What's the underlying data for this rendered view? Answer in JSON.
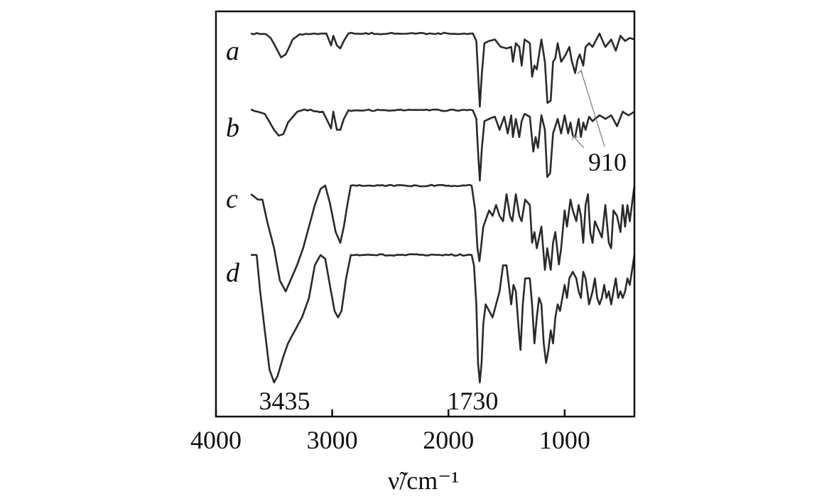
{
  "chart_data": {
    "type": "line",
    "xlabel": "ν̃/cm⁻¹",
    "xlim": [
      4000,
      400
    ],
    "x_reversed": true,
    "grid": false,
    "x_ticks": [
      4000,
      3000,
      2000,
      1000
    ],
    "x_tick_labels": [
      "4000",
      "3000",
      "2000",
      "1000"
    ],
    "annotations": [
      {
        "text": "3435",
        "x": 3435
      },
      {
        "text": "1730",
        "x": 1730
      },
      {
        "text": "910",
        "x": 910
      }
    ],
    "series": [
      {
        "name": "a",
        "points": [
          [
            3700,
            0.02
          ],
          [
            3570,
            0.03
          ],
          [
            3530,
            0.08
          ],
          [
            3480,
            0.22
          ],
          [
            3440,
            0.34
          ],
          [
            3400,
            0.3
          ],
          [
            3340,
            0.1
          ],
          [
            3280,
            0.03
          ],
          [
            3050,
            0.02
          ],
          [
            3010,
            0.18
          ],
          [
            2990,
            0.05
          ],
          [
            2960,
            0.18
          ],
          [
            2930,
            0.22
          ],
          [
            2900,
            0.12
          ],
          [
            2860,
            0.02
          ],
          [
            1790,
            0.02
          ],
          [
            1760,
            0.12
          ],
          [
            1745,
            0.55
          ],
          [
            1730,
            1.0
          ],
          [
            1712,
            0.55
          ],
          [
            1690,
            0.15
          ],
          [
            1650,
            0.12
          ],
          [
            1600,
            0.1
          ],
          [
            1550,
            0.2
          ],
          [
            1500,
            0.22
          ],
          [
            1460,
            0.2
          ],
          [
            1445,
            0.4
          ],
          [
            1420,
            0.15
          ],
          [
            1390,
            0.2
          ],
          [
            1370,
            0.45
          ],
          [
            1345,
            0.1
          ],
          [
            1300,
            0.15
          ],
          [
            1280,
            0.6
          ],
          [
            1260,
            0.45
          ],
          [
            1240,
            0.5
          ],
          [
            1200,
            0.1
          ],
          [
            1170,
            0.4
          ],
          [
            1148,
            0.95
          ],
          [
            1120,
            0.92
          ],
          [
            1100,
            0.4
          ],
          [
            1080,
            0.35
          ],
          [
            1060,
            0.15
          ],
          [
            1030,
            0.4
          ],
          [
            990,
            0.3
          ],
          [
            960,
            0.2
          ],
          [
            940,
            0.38
          ],
          [
            910,
            0.55
          ],
          [
            890,
            0.38
          ],
          [
            870,
            0.3
          ],
          [
            840,
            0.45
          ],
          [
            820,
            0.2
          ],
          [
            790,
            0.15
          ],
          [
            760,
            0.2
          ],
          [
            700,
            0.02
          ],
          [
            650,
            0.2
          ],
          [
            600,
            0.1
          ],
          [
            560,
            0.25
          ],
          [
            520,
            0.05
          ],
          [
            480,
            0.12
          ],
          [
            440,
            0.08
          ],
          [
            400,
            0.1
          ]
        ]
      },
      {
        "name": "b",
        "points": [
          [
            3700,
            0.02
          ],
          [
            3580,
            0.08
          ],
          [
            3500,
            0.3
          ],
          [
            3460,
            0.38
          ],
          [
            3420,
            0.36
          ],
          [
            3380,
            0.2
          ],
          [
            3300,
            0.05
          ],
          [
            3240,
            0.02
          ],
          [
            3080,
            0.05
          ],
          [
            3010,
            0.28
          ],
          [
            2990,
            0.05
          ],
          [
            2960,
            0.3
          ],
          [
            2930,
            0.3
          ],
          [
            2900,
            0.15
          ],
          [
            2860,
            0.03
          ],
          [
            1790,
            0.03
          ],
          [
            1760,
            0.15
          ],
          [
            1745,
            0.6
          ],
          [
            1730,
            1.0
          ],
          [
            1712,
            0.55
          ],
          [
            1690,
            0.18
          ],
          [
            1650,
            0.15
          ],
          [
            1600,
            0.12
          ],
          [
            1560,
            0.3
          ],
          [
            1520,
            0.12
          ],
          [
            1490,
            0.35
          ],
          [
            1460,
            0.1
          ],
          [
            1445,
            0.4
          ],
          [
            1420,
            0.15
          ],
          [
            1390,
            0.4
          ],
          [
            1370,
            0.18
          ],
          [
            1345,
            0.08
          ],
          [
            1300,
            0.12
          ],
          [
            1270,
            0.6
          ],
          [
            1250,
            0.4
          ],
          [
            1230,
            0.55
          ],
          [
            1200,
            0.1
          ],
          [
            1170,
            0.3
          ],
          [
            1150,
            0.95
          ],
          [
            1125,
            0.9
          ],
          [
            1100,
            0.35
          ],
          [
            1060,
            0.15
          ],
          [
            1030,
            0.35
          ],
          [
            1000,
            0.1
          ],
          [
            970,
            0.35
          ],
          [
            950,
            0.2
          ],
          [
            930,
            0.38
          ],
          [
            910,
            0.4
          ],
          [
            880,
            0.15
          ],
          [
            860,
            0.4
          ],
          [
            840,
            0.2
          ],
          [
            820,
            0.3
          ],
          [
            790,
            0.12
          ],
          [
            760,
            0.18
          ],
          [
            700,
            0.1
          ],
          [
            650,
            0.15
          ],
          [
            600,
            0.1
          ],
          [
            550,
            0.25
          ],
          [
            500,
            0.05
          ],
          [
            450,
            0.1
          ],
          [
            400,
            0.05
          ]
        ]
      },
      {
        "name": "c",
        "points": [
          [
            3700,
            0.1
          ],
          [
            3640,
            0.15
          ],
          [
            3600,
            0.15
          ],
          [
            3560,
            0.35
          ],
          [
            3500,
            0.6
          ],
          [
            3450,
            0.9
          ],
          [
            3400,
            1.0
          ],
          [
            3360,
            0.9
          ],
          [
            3300,
            0.75
          ],
          [
            3250,
            0.6
          ],
          [
            3200,
            0.4
          ],
          [
            3150,
            0.2
          ],
          [
            3100,
            0.05
          ],
          [
            3060,
            0.02
          ],
          [
            3020,
            0.18
          ],
          [
            2970,
            0.45
          ],
          [
            2930,
            0.55
          ],
          [
            2900,
            0.4
          ],
          [
            2870,
            0.2
          ],
          [
            2840,
            0.02
          ],
          [
            1800,
            0.02
          ],
          [
            1770,
            0.25
          ],
          [
            1750,
            0.6
          ],
          [
            1733,
            0.72
          ],
          [
            1720,
            0.6
          ],
          [
            1700,
            0.4
          ],
          [
            1650,
            0.25
          ],
          [
            1620,
            0.3
          ],
          [
            1590,
            0.2
          ],
          [
            1560,
            0.3
          ],
          [
            1530,
            0.35
          ],
          [
            1500,
            0.1
          ],
          [
            1470,
            0.3
          ],
          [
            1450,
            0.35
          ],
          [
            1420,
            0.1
          ],
          [
            1390,
            0.3
          ],
          [
            1370,
            0.35
          ],
          [
            1340,
            0.15
          ],
          [
            1300,
            0.2
          ],
          [
            1280,
            0.55
          ],
          [
            1260,
            0.45
          ],
          [
            1240,
            0.6
          ],
          [
            1200,
            0.4
          ],
          [
            1170,
            0.8
          ],
          [
            1150,
            0.6
          ],
          [
            1120,
            0.8
          ],
          [
            1100,
            0.55
          ],
          [
            1080,
            0.45
          ],
          [
            1050,
            0.75
          ],
          [
            1030,
            0.6
          ],
          [
            1000,
            0.25
          ],
          [
            980,
            0.4
          ],
          [
            950,
            0.15
          ],
          [
            930,
            0.25
          ],
          [
            900,
            0.35
          ],
          [
            880,
            0.2
          ],
          [
            860,
            0.3
          ],
          [
            840,
            0.55
          ],
          [
            820,
            0.2
          ],
          [
            800,
            0.1
          ],
          [
            780,
            0.45
          ],
          [
            760,
            0.55
          ],
          [
            740,
            0.35
          ],
          [
            700,
            0.45
          ],
          [
            680,
            0.5
          ],
          [
            650,
            0.2
          ],
          [
            620,
            0.55
          ],
          [
            600,
            0.6
          ],
          [
            580,
            0.25
          ],
          [
            550,
            0.3
          ],
          [
            520,
            0.45
          ],
          [
            500,
            0.2
          ],
          [
            480,
            0.4
          ],
          [
            460,
            0.2
          ],
          [
            440,
            0.35
          ],
          [
            400,
            0.02
          ]
        ]
      },
      {
        "name": "d",
        "points": [
          [
            3700,
            0.02
          ],
          [
            3650,
            0.02
          ],
          [
            3620,
            0.3
          ],
          [
            3580,
            0.6
          ],
          [
            3540,
            0.9
          ],
          [
            3500,
            1.0
          ],
          [
            3470,
            0.95
          ],
          [
            3420,
            0.8
          ],
          [
            3380,
            0.7
          ],
          [
            3320,
            0.6
          ],
          [
            3260,
            0.5
          ],
          [
            3200,
            0.35
          ],
          [
            3150,
            0.1
          ],
          [
            3100,
            0.02
          ],
          [
            3060,
            0.05
          ],
          [
            3020,
            0.25
          ],
          [
            2980,
            0.45
          ],
          [
            2950,
            0.5
          ],
          [
            2920,
            0.45
          ],
          [
            2880,
            0.2
          ],
          [
            2840,
            0.02
          ],
          [
            1800,
            0.02
          ],
          [
            1780,
            0.1
          ],
          [
            1760,
            0.4
          ],
          [
            1745,
            0.85
          ],
          [
            1730,
            1.0
          ],
          [
            1715,
            0.85
          ],
          [
            1700,
            0.55
          ],
          [
            1680,
            0.4
          ],
          [
            1650,
            0.45
          ],
          [
            1620,
            0.5
          ],
          [
            1590,
            0.4
          ],
          [
            1560,
            0.3
          ],
          [
            1530,
            0.1
          ],
          [
            1500,
            0.1
          ],
          [
            1480,
            0.25
          ],
          [
            1460,
            0.4
          ],
          [
            1440,
            0.25
          ],
          [
            1420,
            0.3
          ],
          [
            1390,
            0.65
          ],
          [
            1380,
            0.75
          ],
          [
            1360,
            0.4
          ],
          [
            1340,
            0.2
          ],
          [
            1300,
            0.2
          ],
          [
            1280,
            0.4
          ],
          [
            1260,
            0.7
          ],
          [
            1240,
            0.5
          ],
          [
            1220,
            0.35
          ],
          [
            1200,
            0.4
          ],
          [
            1180,
            0.7
          ],
          [
            1160,
            0.85
          ],
          [
            1140,
            0.75
          ],
          [
            1120,
            0.6
          ],
          [
            1100,
            0.7
          ],
          [
            1080,
            0.5
          ],
          [
            1060,
            0.4
          ],
          [
            1040,
            0.45
          ],
          [
            1000,
            0.25
          ],
          [
            980,
            0.35
          ],
          [
            960,
            0.2
          ],
          [
            930,
            0.15
          ],
          [
            900,
            0.2
          ],
          [
            880,
            0.3
          ],
          [
            860,
            0.35
          ],
          [
            840,
            0.15
          ],
          [
            820,
            0.2
          ],
          [
            790,
            0.4
          ],
          [
            760,
            0.3
          ],
          [
            740,
            0.2
          ],
          [
            720,
            0.35
          ],
          [
            700,
            0.4
          ],
          [
            680,
            0.35
          ],
          [
            660,
            0.25
          ],
          [
            640,
            0.35
          ],
          [
            620,
            0.3
          ],
          [
            600,
            0.4
          ],
          [
            580,
            0.3
          ],
          [
            560,
            0.2
          ],
          [
            540,
            0.35
          ],
          [
            520,
            0.3
          ],
          [
            500,
            0.35
          ],
          [
            480,
            0.3
          ],
          [
            460,
            0.2
          ],
          [
            440,
            0.25
          ],
          [
            400,
            0.02
          ]
        ]
      }
    ]
  }
}
